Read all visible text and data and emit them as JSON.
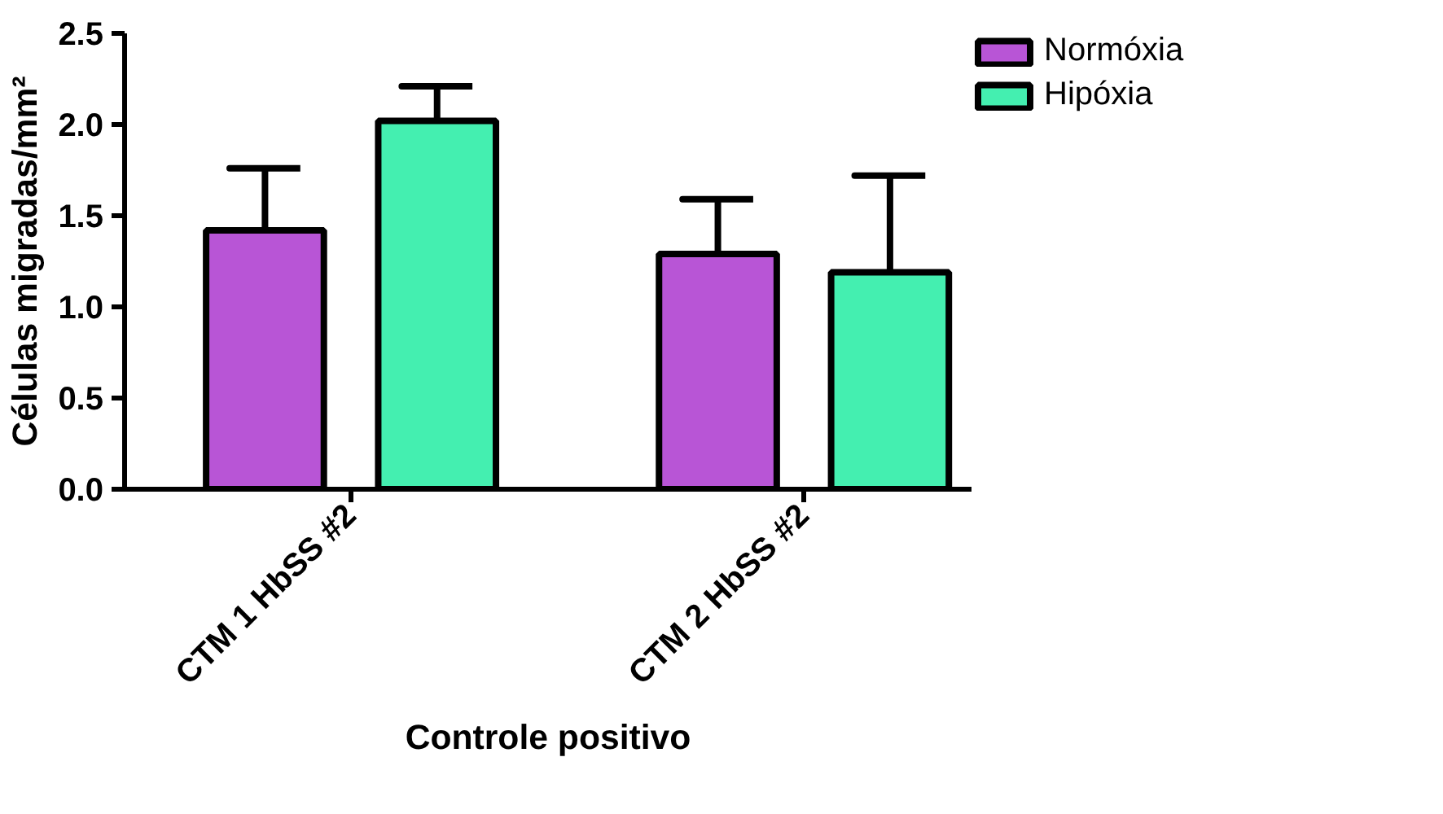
{
  "chart_data": {
    "type": "bar",
    "xlabel": "Controle positivo",
    "ylabel": "Células migradas/mm²",
    "categories": [
      "CTM 1 HbSS #2",
      "CTM 2 HbSS #2"
    ],
    "series": [
      {
        "name": "Normóxia",
        "color": "#b855d6",
        "values": [
          1.42,
          1.29
        ],
        "errors": [
          [
            1.42,
            1.76
          ],
          [
            1.29,
            1.59
          ]
        ]
      },
      {
        "name": "Hipóxia",
        "color": "#44efb0",
        "values": [
          2.02,
          1.19
        ],
        "errors": [
          [
            2.02,
            2.21
          ],
          [
            1.19,
            1.72
          ]
        ]
      }
    ],
    "ylim": [
      0,
      2.5
    ],
    "yticks": [
      {
        "value": 0,
        "label": "0.0"
      },
      {
        "value": 0.5,
        "label": "0.5"
      },
      {
        "value": 1,
        "label": "1.0"
      },
      {
        "value": 1.5,
        "label": "1.5"
      },
      {
        "value": 2,
        "label": "2.0"
      },
      {
        "value": 2.5,
        "label": "2.5"
      }
    ],
    "grid": false,
    "legend": "top right"
  }
}
